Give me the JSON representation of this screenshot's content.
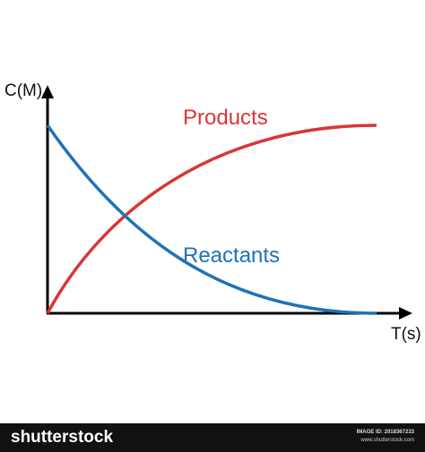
{
  "axes": {
    "y_label": "C(M)",
    "x_label": "T(s)"
  },
  "curves": [
    {
      "label": "Products",
      "color": "#d93636"
    },
    {
      "label": "Reactants",
      "color": "#1f72b8"
    }
  ],
  "footer": {
    "logo": "shutterstock",
    "image_id": "IMAGE ID: 2018367233",
    "site": "www.shutterstock.com"
  }
}
